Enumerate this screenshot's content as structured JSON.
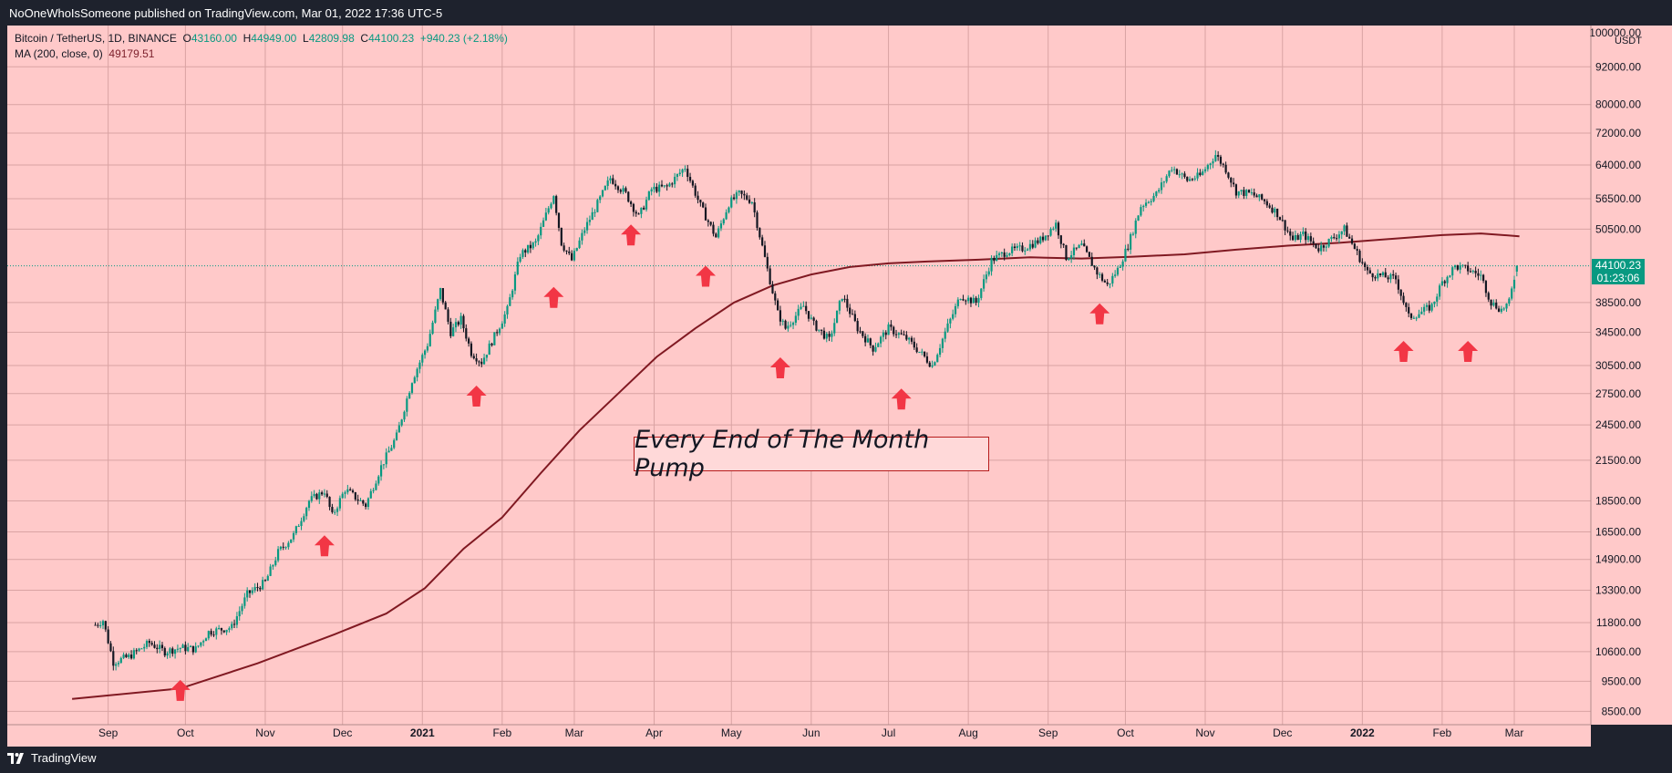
{
  "header": {
    "published": "NoOneWhoIsSomeone published on TradingView.com, Mar 01, 2022 17:36 UTC-5"
  },
  "footer": {
    "brand": "TradingView"
  },
  "legend": {
    "symbol": "Bitcoin / TetherUS, 1D, BINANCE",
    "o_label": "O",
    "o": "43160.00",
    "h_label": "H",
    "h": "44949.00",
    "l_label": "L",
    "l": "42809.98",
    "c_label": "C",
    "c": "44100.23",
    "change": "+940.23 (+2.18%)",
    "ma_label": "MA (200, close, 0)",
    "ma_value": "49179.51"
  },
  "annotation": {
    "text": "Every End of The Month Pump"
  },
  "price_scale": {
    "currency": "USDT",
    "top_partial": "100000.00",
    "last_price": "44100.23",
    "countdown": "01:23:06"
  },
  "colors": {
    "background": "#ffc9c9",
    "up_candle": "#089981",
    "down_candle": "#131722",
    "ma_line": "#801922",
    "arrow": "#f23645",
    "grid": "#d9a3a3",
    "price_tag": "#089981"
  },
  "chart_data": {
    "type": "candlestick",
    "title": "Bitcoin / TetherUS, 1D, BINANCE",
    "scale": "log",
    "ylim": [
      8000,
      104000
    ],
    "y_ticks": [
      8500,
      9500,
      10600,
      11800,
      13300,
      14900,
      16500,
      18500,
      21500,
      24500,
      27500,
      30500,
      34500,
      38500,
      44100.23,
      50500,
      56500,
      64000,
      72000,
      80000,
      92000
    ],
    "y_tick_labels": [
      "8500.00",
      "9500.00",
      "10600.00",
      "11800.00",
      "13300.00",
      "14900.00",
      "16500.00",
      "18500.00",
      "21500.00",
      "24500.00",
      "27500.00",
      "30500.00",
      "34500.00",
      "38500.00",
      "44100.23",
      "50500.00",
      "56500.00",
      "64000.00",
      "72000.00",
      "80000.00",
      "92000.00"
    ],
    "x_ticks": [
      "Sep",
      "Oct",
      "Nov",
      "Dec",
      "2021",
      "Feb",
      "Mar",
      "Apr",
      "May",
      "Jun",
      "Jul",
      "Aug",
      "Sep",
      "Oct",
      "Nov",
      "Dec",
      "2022",
      "Feb",
      "Mar"
    ],
    "x_tick_days": [
      2,
      32,
      63,
      93,
      124,
      155,
      183,
      214,
      244,
      275,
      305,
      336,
      367,
      397,
      428,
      458,
      489,
      520,
      548
    ],
    "price_path": [
      {
        "d": -3,
        "p": 11700
      },
      {
        "d": 0,
        "p": 11900
      },
      {
        "d": 4,
        "p": 10200
      },
      {
        "d": 10,
        "p": 10400
      },
      {
        "d": 18,
        "p": 10950
      },
      {
        "d": 24,
        "p": 10600
      },
      {
        "d": 30,
        "p": 10750
      },
      {
        "d": 36,
        "p": 10700
      },
      {
        "d": 41,
        "p": 11400
      },
      {
        "d": 50,
        "p": 11600
      },
      {
        "d": 56,
        "p": 13100
      },
      {
        "d": 63,
        "p": 13700
      },
      {
        "d": 68,
        "p": 15300
      },
      {
        "d": 74,
        "p": 16300
      },
      {
        "d": 80,
        "p": 18500
      },
      {
        "d": 86,
        "p": 19200
      },
      {
        "d": 89,
        "p": 17500
      },
      {
        "d": 94,
        "p": 19300
      },
      {
        "d": 102,
        "p": 18200
      },
      {
        "d": 108,
        "p": 21000
      },
      {
        "d": 114,
        "p": 23500
      },
      {
        "d": 120,
        "p": 28900
      },
      {
        "d": 126,
        "p": 33000
      },
      {
        "d": 131,
        "p": 40300
      },
      {
        "d": 135,
        "p": 34500
      },
      {
        "d": 139,
        "p": 36200
      },
      {
        "d": 143,
        "p": 32000
      },
      {
        "d": 147,
        "p": 30900
      },
      {
        "d": 152,
        "p": 34000
      },
      {
        "d": 157,
        "p": 37500
      },
      {
        "d": 162,
        "p": 46000
      },
      {
        "d": 168,
        "p": 48000
      },
      {
        "d": 175,
        "p": 57500
      },
      {
        "d": 178,
        "p": 48000
      },
      {
        "d": 182,
        "p": 45000
      },
      {
        "d": 187,
        "p": 50500
      },
      {
        "d": 193,
        "p": 56500
      },
      {
        "d": 197,
        "p": 61000
      },
      {
        "d": 203,
        "p": 57500
      },
      {
        "d": 208,
        "p": 52800
      },
      {
        "d": 213,
        "p": 58500
      },
      {
        "d": 219,
        "p": 59000
      },
      {
        "d": 226,
        "p": 63500
      },
      {
        "d": 232,
        "p": 55000
      },
      {
        "d": 238,
        "p": 49000
      },
      {
        "d": 243,
        "p": 55500
      },
      {
        "d": 247,
        "p": 57500
      },
      {
        "d": 252,
        "p": 56000
      },
      {
        "d": 258,
        "p": 43500
      },
      {
        "d": 262,
        "p": 37000
      },
      {
        "d": 265,
        "p": 35000
      },
      {
        "d": 272,
        "p": 38000
      },
      {
        "d": 276,
        "p": 35500
      },
      {
        "d": 282,
        "p": 33500
      },
      {
        "d": 287,
        "p": 39500
      },
      {
        "d": 293,
        "p": 35000
      },
      {
        "d": 299,
        "p": 32500
      },
      {
        "d": 305,
        "p": 35000
      },
      {
        "d": 312,
        "p": 33700
      },
      {
        "d": 318,
        "p": 31800
      },
      {
        "d": 322,
        "p": 30500
      },
      {
        "d": 327,
        "p": 34500
      },
      {
        "d": 333,
        "p": 39500
      },
      {
        "d": 339,
        "p": 38500
      },
      {
        "d": 345,
        "p": 45000
      },
      {
        "d": 351,
        "p": 46500
      },
      {
        "d": 357,
        "p": 47000
      },
      {
        "d": 364,
        "p": 48500
      },
      {
        "d": 370,
        "p": 51500
      },
      {
        "d": 374,
        "p": 45500
      },
      {
        "d": 380,
        "p": 47500
      },
      {
        "d": 386,
        "p": 43000
      },
      {
        "d": 390,
        "p": 41000
      },
      {
        "d": 394,
        "p": 43500
      },
      {
        "d": 398,
        "p": 47500
      },
      {
        "d": 403,
        "p": 55000
      },
      {
        "d": 409,
        "p": 57500
      },
      {
        "d": 415,
        "p": 63500
      },
      {
        "d": 421,
        "p": 60500
      },
      {
        "d": 426,
        "p": 61500
      },
      {
        "d": 432,
        "p": 66500
      },
      {
        "d": 436,
        "p": 63000
      },
      {
        "d": 440,
        "p": 58000
      },
      {
        "d": 446,
        "p": 57500
      },
      {
        "d": 451,
        "p": 56000
      },
      {
        "d": 456,
        "p": 53500
      },
      {
        "d": 462,
        "p": 48500
      },
      {
        "d": 466,
        "p": 49500
      },
      {
        "d": 472,
        "p": 47000
      },
      {
        "d": 478,
        "p": 49000
      },
      {
        "d": 482,
        "p": 50500
      },
      {
        "d": 486,
        "p": 47000
      },
      {
        "d": 491,
        "p": 43000
      },
      {
        "d": 496,
        "p": 42500
      },
      {
        "d": 502,
        "p": 42000
      },
      {
        "d": 507,
        "p": 36500
      },
      {
        "d": 511,
        "p": 37000
      },
      {
        "d": 516,
        "p": 38000
      },
      {
        "d": 520,
        "p": 41500
      },
      {
        "d": 525,
        "p": 44000
      },
      {
        "d": 530,
        "p": 43500
      },
      {
        "d": 535,
        "p": 42500
      },
      {
        "d": 539,
        "p": 38500
      },
      {
        "d": 543,
        "p": 37500
      },
      {
        "d": 546,
        "p": 38500
      },
      {
        "d": 549,
        "p": 44100
      }
    ],
    "ma_series": {
      "name": "MA (200, close, 0)",
      "points": [
        {
          "d": -12,
          "p": 8900
        },
        {
          "d": 30,
          "p": 9250
        },
        {
          "d": 60,
          "p": 10150
        },
        {
          "d": 90,
          "p": 11300
        },
        {
          "d": 110,
          "p": 12200
        },
        {
          "d": 125,
          "p": 13400
        },
        {
          "d": 140,
          "p": 15500
        },
        {
          "d": 155,
          "p": 17400
        },
        {
          "d": 170,
          "p": 20500
        },
        {
          "d": 185,
          "p": 24000
        },
        {
          "d": 200,
          "p": 27500
        },
        {
          "d": 215,
          "p": 31500
        },
        {
          "d": 230,
          "p": 35000
        },
        {
          "d": 245,
          "p": 38500
        },
        {
          "d": 260,
          "p": 41000
        },
        {
          "d": 275,
          "p": 42700
        },
        {
          "d": 290,
          "p": 43900
        },
        {
          "d": 305,
          "p": 44500
        },
        {
          "d": 320,
          "p": 44800
        },
        {
          "d": 340,
          "p": 45100
        },
        {
          "d": 360,
          "p": 45500
        },
        {
          "d": 380,
          "p": 45300
        },
        {
          "d": 400,
          "p": 45600
        },
        {
          "d": 420,
          "p": 46000
        },
        {
          "d": 440,
          "p": 46800
        },
        {
          "d": 460,
          "p": 47500
        },
        {
          "d": 480,
          "p": 48000
        },
        {
          "d": 500,
          "p": 48700
        },
        {
          "d": 520,
          "p": 49400
        },
        {
          "d": 535,
          "p": 49700
        },
        {
          "d": 550,
          "p": 49179.51
        }
      ]
    },
    "pump_arrows": [
      {
        "d": 30,
        "p": 9200
      },
      {
        "d": 86,
        "p": 15700
      },
      {
        "d": 145,
        "p": 27300
      },
      {
        "d": 175,
        "p": 39300
      },
      {
        "d": 205,
        "p": 49500
      },
      {
        "d": 234,
        "p": 42500
      },
      {
        "d": 263,
        "p": 30300
      },
      {
        "d": 310,
        "p": 27000
      },
      {
        "d": 387,
        "p": 37000
      },
      {
        "d": 505,
        "p": 32200
      },
      {
        "d": 530,
        "p": 32200
      }
    ],
    "last_close": 44100.23
  }
}
